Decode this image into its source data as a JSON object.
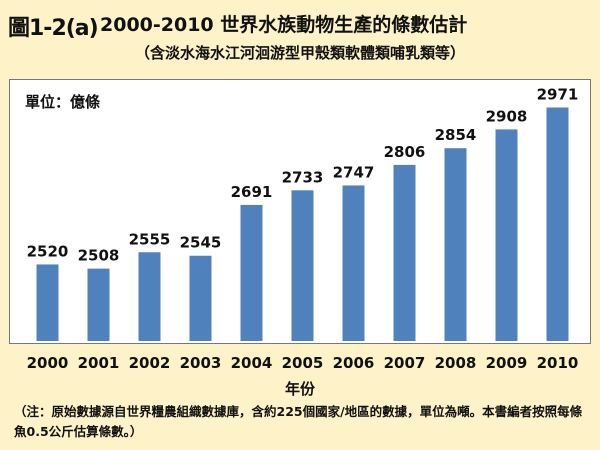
{
  "header": {
    "figure_label": "圖1-2(a)",
    "title": "2000-2010 世界水族動物生產的條數估計",
    "subtitle": "（含淡水海水江河洄游型甲殼類軟體類哺乳類等）"
  },
  "note": "（注：原始數據源自世界糧農組織數據庫，含約225個國家/地區的數據，單位為噸。本書編者按照每條魚0.5公斤估算條數。）",
  "chart_data": {
    "type": "bar",
    "title": "2000-2010 世界水族動物生產的條數估計",
    "subtitle": "（含淡水海水江河洄游型甲殼類軟體類哺乳類等）",
    "unit_label": "單位：億條",
    "xlabel": "年份",
    "ylabel": "",
    "categories": [
      "2000",
      "2001",
      "2002",
      "2003",
      "2004",
      "2005",
      "2006",
      "2007",
      "2008",
      "2009",
      "2010"
    ],
    "values": [
      2520,
      2508,
      2555,
      2545,
      2691,
      2733,
      2747,
      2806,
      2854,
      2908,
      2971
    ],
    "ylim": [
      2300,
      3050
    ],
    "data_labels": true,
    "grid": false,
    "bar_color": "#4f81bd"
  }
}
